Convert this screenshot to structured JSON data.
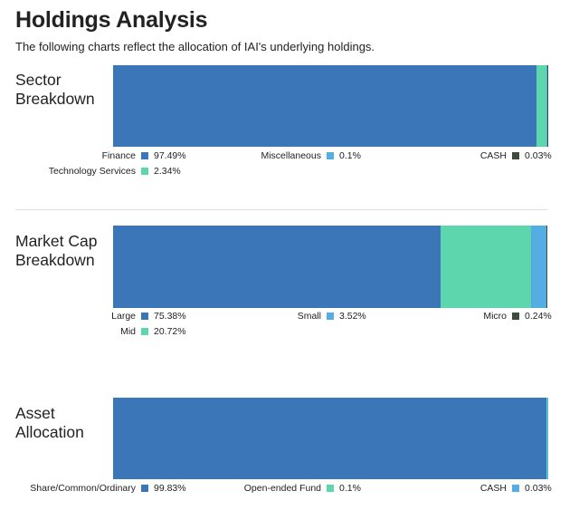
{
  "page": {
    "title": "Holdings Analysis",
    "subtitle": "The following charts reflect the allocation of IAI's underlying holdings."
  },
  "chart_data": [
    {
      "type": "bar",
      "title": "Sector Breakdown",
      "title_lines": [
        "Sector",
        "Breakdown"
      ],
      "stacked": true,
      "orientation": "horizontal",
      "series": [
        {
          "name": "Finance",
          "value": 97.49,
          "label": "97.49%",
          "color": "#3b77b8"
        },
        {
          "name": "Technology Services",
          "value": 2.34,
          "label": "2.34%",
          "color": "#5dd6ad"
        },
        {
          "name": "Miscellaneous",
          "value": 0.1,
          "label": "0.1%",
          "color": "#55aee3"
        },
        {
          "name": "CASH",
          "value": 0.03,
          "label": "0.03%",
          "color": "#3d4a3d"
        }
      ],
      "legend_order": [
        {
          "name": "Finance",
          "value": 97.49,
          "label": "97.49%",
          "color": "#3b77b8"
        },
        {
          "name": "Miscellaneous",
          "value": 0.1,
          "label": "0.1%",
          "color": "#55aee3"
        },
        {
          "name": "CASH",
          "value": 0.03,
          "label": "0.03%",
          "color": "#3d4a3d"
        },
        {
          "name": "Technology Services",
          "value": 2.34,
          "label": "2.34%",
          "color": "#5dd6ad"
        }
      ]
    },
    {
      "type": "bar",
      "title": "Market Cap Breakdown",
      "title_lines": [
        "Market Cap",
        "Breakdown"
      ],
      "stacked": true,
      "orientation": "horizontal",
      "series": [
        {
          "name": "Large",
          "value": 75.38,
          "label": "75.38%",
          "color": "#3b77b8"
        },
        {
          "name": "Mid",
          "value": 20.72,
          "label": "20.72%",
          "color": "#5dd6ad"
        },
        {
          "name": "Small",
          "value": 3.52,
          "label": "3.52%",
          "color": "#55aee3"
        },
        {
          "name": "Micro",
          "value": 0.24,
          "label": "0.24%",
          "color": "#3d4a3d"
        }
      ],
      "legend_order": [
        {
          "name": "Large",
          "value": 75.38,
          "label": "75.38%",
          "color": "#3b77b8"
        },
        {
          "name": "Small",
          "value": 3.52,
          "label": "3.52%",
          "color": "#55aee3"
        },
        {
          "name": "Micro",
          "value": 0.24,
          "label": "0.24%",
          "color": "#3d4a3d"
        },
        {
          "name": "Mid",
          "value": 20.72,
          "label": "20.72%",
          "color": "#5dd6ad"
        }
      ]
    },
    {
      "type": "bar",
      "title": "Asset Allocation",
      "title_lines": [
        "Asset",
        "Allocation"
      ],
      "stacked": true,
      "orientation": "horizontal",
      "series": [
        {
          "name": "Share/Common/Ordinary",
          "value": 99.83,
          "label": "99.83%",
          "color": "#3b77b8"
        },
        {
          "name": "Open-ended Fund",
          "value": 0.1,
          "label": "0.1%",
          "color": "#5dd6ad"
        },
        {
          "name": "CASH",
          "value": 0.03,
          "label": "0.03%",
          "color": "#55aee3"
        }
      ],
      "legend_order": [
        {
          "name": "Share/Common/Ordinary",
          "value": 99.83,
          "label": "99.83%",
          "color": "#3b77b8"
        },
        {
          "name": "Open-ended Fund",
          "value": 0.1,
          "label": "0.1%",
          "color": "#5dd6ad"
        },
        {
          "name": "CASH",
          "value": 0.03,
          "label": "0.03%",
          "color": "#55aee3"
        }
      ]
    }
  ]
}
